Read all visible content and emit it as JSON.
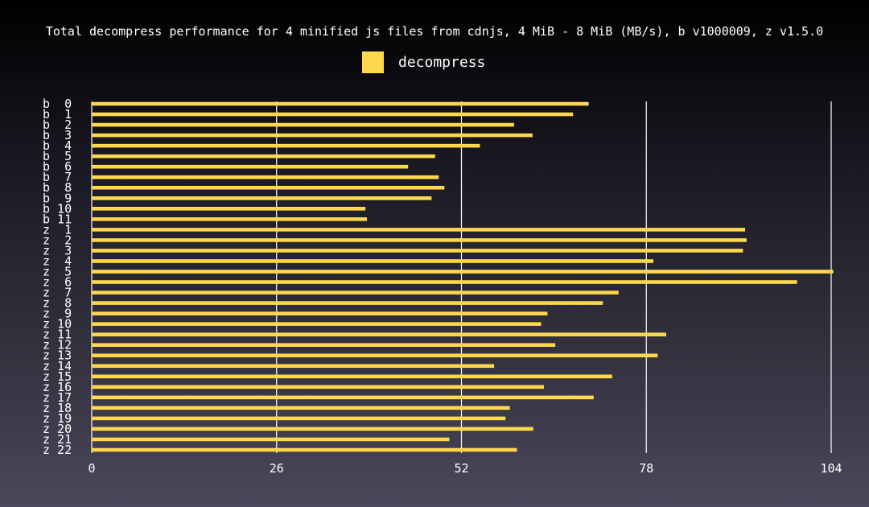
{
  "chart_data": {
    "type": "bar",
    "orientation": "horizontal",
    "title": "Total decompress performance for 4 minified js files from cdnjs, 4 MiB - 8 MiB (MB/s), b v1000009, z v1.5.0",
    "legend": {
      "position": "top-center",
      "entries": [
        "decompress"
      ]
    },
    "colors": {
      "bar": "#ffd84d",
      "grid": "#ffffff"
    },
    "categories": [
      "b  0",
      "b  1",
      "b  2",
      "b  3",
      "b  4",
      "b  5",
      "b  6",
      "b  7",
      "b  8",
      "b  9",
      "b 10",
      "b 11",
      "z  1",
      "z  2",
      "z  3",
      "z  4",
      "z  5",
      "z  6",
      "z  7",
      "z  8",
      "z  9",
      "z 10",
      "z 11",
      "z 12",
      "z 13",
      "z 14",
      "z 15",
      "z 16",
      "z 17",
      "z 18",
      "z 19",
      "z 20",
      "z 21",
      "z 22"
    ],
    "series": [
      {
        "name": "decompress",
        "values": [
          69.9,
          67.7,
          59.4,
          62.0,
          54.6,
          48.3,
          44.5,
          48.8,
          49.6,
          47.8,
          38.5,
          38.7,
          91.9,
          92.1,
          91.6,
          79.0,
          104.3,
          99.2,
          74.1,
          71.9,
          64.1,
          63.2,
          80.8,
          65.2,
          79.6,
          56.6,
          73.2,
          63.6,
          70.6,
          58.8,
          58.2,
          62.1,
          50.3,
          59.8
        ]
      }
    ],
    "xlim": [
      0,
      104
    ],
    "xticks": [
      0,
      26,
      52,
      78,
      104
    ],
    "grid": true
  }
}
